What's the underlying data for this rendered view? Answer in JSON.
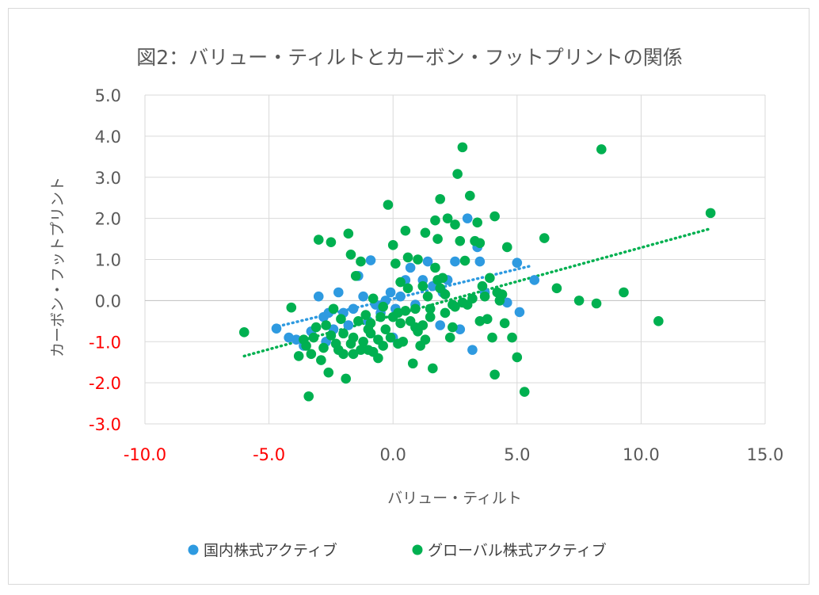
{
  "chart_data": {
    "type": "scatter",
    "title": "図2：バリュー・ティルトとカーボン・フットプリントの関係",
    "xlabel": "バリュー・ティルト",
    "ylabel": "カーボン・フットプリント",
    "xlim": [
      -10,
      15
    ],
    "ylim": [
      -3,
      5
    ],
    "x_ticks": [
      "-10.0",
      "-5.0",
      "0.0",
      "5.0",
      "10.0",
      "15.0"
    ],
    "y_ticks": [
      "5.0",
      "4.0",
      "3.0",
      "2.0",
      "1.0",
      "0.0",
      "-1.0",
      "-2.0",
      "-3.0"
    ],
    "negative_tick_color": "#ff0000",
    "tick_color": "#595959",
    "grid": true,
    "legend_position": "bottom",
    "series": [
      {
        "name": "国内株式アクティブ",
        "color": "#2e9ae0",
        "trendline": {
          "x0": -4.8,
          "y0": -0.65,
          "x1": 5.6,
          "y1": 0.85
        },
        "points": [
          [
            -4.7,
            -0.68
          ],
          [
            -4.2,
            -0.9
          ],
          [
            -3.9,
            -0.95
          ],
          [
            -3.6,
            -1.1
          ],
          [
            -3.3,
            -0.75
          ],
          [
            -3.0,
            0.1
          ],
          [
            -2.8,
            -0.4
          ],
          [
            -2.6,
            -0.3
          ],
          [
            -2.4,
            -0.7
          ],
          [
            -2.2,
            0.2
          ],
          [
            -2.0,
            -0.3
          ],
          [
            -1.8,
            -0.6
          ],
          [
            -1.6,
            -0.2
          ],
          [
            -1.4,
            0.6
          ],
          [
            -1.2,
            0.1
          ],
          [
            -1.0,
            -0.5
          ],
          [
            -0.9,
            0.98
          ],
          [
            -0.7,
            -0.1
          ],
          [
            -0.5,
            -0.3
          ],
          [
            -0.3,
            0.0
          ],
          [
            -0.1,
            0.2
          ],
          [
            0.1,
            -0.2
          ],
          [
            0.3,
            0.1
          ],
          [
            0.5,
            0.5
          ],
          [
            0.7,
            0.8
          ],
          [
            0.9,
            -0.1
          ],
          [
            1.2,
            0.5
          ],
          [
            1.4,
            0.95
          ],
          [
            1.6,
            0.35
          ],
          [
            1.9,
            -0.6
          ],
          [
            2.0,
            0.2
          ],
          [
            2.2,
            0.5
          ],
          [
            2.5,
            0.95
          ],
          [
            2.7,
            -0.7
          ],
          [
            3.0,
            2.0
          ],
          [
            3.2,
            -1.2
          ],
          [
            3.4,
            1.3
          ],
          [
            3.5,
            0.95
          ],
          [
            3.7,
            0.2
          ],
          [
            4.6,
            -0.05
          ],
          [
            5.0,
            0.92
          ],
          [
            5.1,
            -0.28
          ],
          [
            5.7,
            0.5
          ],
          [
            -2.7,
            -1.0
          ],
          [
            0.0,
            -0.9
          ]
        ]
      },
      {
        "name": "グローバル株式アクティブ",
        "color": "#00b050",
        "trendline": {
          "x0": -6.0,
          "y0": -1.35,
          "x1": 12.8,
          "y1": 1.75
        },
        "points": [
          [
            -6.0,
            -0.77
          ],
          [
            -4.1,
            -0.17
          ],
          [
            -3.5,
            -1.1
          ],
          [
            -3.4,
            -2.33
          ],
          [
            -3.2,
            -0.9
          ],
          [
            -3.0,
            1.48
          ],
          [
            -2.9,
            -1.45
          ],
          [
            -2.7,
            -0.6
          ],
          [
            -2.6,
            -1.75
          ],
          [
            -2.5,
            1.42
          ],
          [
            -2.4,
            -0.2
          ],
          [
            -2.2,
            -1.2
          ],
          [
            -2.0,
            -0.8
          ],
          [
            -1.9,
            -1.9
          ],
          [
            -1.8,
            1.63
          ],
          [
            -1.7,
            1.12
          ],
          [
            -1.6,
            -1.3
          ],
          [
            -1.5,
            0.6
          ],
          [
            -1.4,
            -0.5
          ],
          [
            -1.3,
            0.95
          ],
          [
            -1.2,
            -1.0
          ],
          [
            -1.0,
            -1.2
          ],
          [
            -0.9,
            -0.8
          ],
          [
            -0.8,
            0.05
          ],
          [
            -0.6,
            -1.4
          ],
          [
            -0.5,
            -0.4
          ],
          [
            -0.4,
            -1.1
          ],
          [
            -0.2,
            2.33
          ],
          [
            -0.1,
            -0.9
          ],
          [
            0.0,
            1.35
          ],
          [
            0.1,
            0.9
          ],
          [
            0.2,
            -0.3
          ],
          [
            0.3,
            0.45
          ],
          [
            0.5,
            1.7
          ],
          [
            0.6,
            1.05
          ],
          [
            0.7,
            -0.5
          ],
          [
            0.8,
            -1.53
          ],
          [
            0.9,
            -0.2
          ],
          [
            1.0,
            1.0
          ],
          [
            1.1,
            -1.1
          ],
          [
            1.2,
            -0.6
          ],
          [
            1.3,
            1.65
          ],
          [
            1.4,
            0.1
          ],
          [
            1.5,
            -0.4
          ],
          [
            1.6,
            -1.65
          ],
          [
            1.7,
            1.95
          ],
          [
            1.8,
            1.5
          ],
          [
            1.9,
            2.47
          ],
          [
            2.0,
            0.55
          ],
          [
            2.1,
            -0.3
          ],
          [
            2.2,
            2.0
          ],
          [
            2.3,
            -0.9
          ],
          [
            2.4,
            -0.1
          ],
          [
            2.5,
            1.85
          ],
          [
            2.6,
            3.08
          ],
          [
            2.7,
            1.45
          ],
          [
            2.8,
            3.73
          ],
          [
            2.9,
            0.97
          ],
          [
            3.0,
            -0.1
          ],
          [
            3.1,
            2.55
          ],
          [
            3.3,
            1.45
          ],
          [
            3.4,
            1.9
          ],
          [
            3.5,
            -0.5
          ],
          [
            3.6,
            0.35
          ],
          [
            3.7,
            0.1
          ],
          [
            3.8,
            -0.45
          ],
          [
            3.9,
            0.55
          ],
          [
            4.0,
            -0.9
          ],
          [
            4.1,
            2.05
          ],
          [
            4.1,
            -1.8
          ],
          [
            4.2,
            0.2
          ],
          [
            4.3,
            0.0
          ],
          [
            4.5,
            -0.55
          ],
          [
            4.6,
            1.3
          ],
          [
            4.8,
            -0.9
          ],
          [
            5.0,
            -1.38
          ],
          [
            5.3,
            -2.22
          ],
          [
            6.1,
            1.52
          ],
          [
            6.6,
            0.3
          ],
          [
            7.5,
            0.0
          ],
          [
            8.2,
            -0.07
          ],
          [
            8.4,
            3.68
          ],
          [
            9.3,
            0.2
          ],
          [
            10.7,
            -0.5
          ],
          [
            12.8,
            2.13
          ],
          [
            -3.8,
            -1.35
          ],
          [
            -3.1,
            -0.65
          ],
          [
            -2.3,
            -1.05
          ],
          [
            -1.1,
            -0.35
          ],
          [
            -0.3,
            -0.7
          ],
          [
            0.4,
            -1.0
          ],
          [
            1.2,
            0.35
          ],
          [
            1.9,
            0.3
          ],
          [
            2.4,
            -0.65
          ],
          [
            3.2,
            0.05
          ],
          [
            -3.3,
            -1.3
          ],
          [
            -2.8,
            -1.15
          ],
          [
            -2.1,
            -0.45
          ],
          [
            -1.6,
            -0.9
          ],
          [
            -0.8,
            -1.25
          ],
          [
            0.2,
            -1.05
          ],
          [
            0.9,
            -0.65
          ],
          [
            1.5,
            -0.2
          ],
          [
            2.1,
            0.15
          ],
          [
            2.8,
            -0.05
          ],
          [
            -3.6,
            -0.95
          ],
          [
            -2.5,
            -0.85
          ],
          [
            -1.7,
            -1.05
          ],
          [
            -0.9,
            -0.55
          ],
          [
            0.6,
            0.3
          ],
          [
            1.3,
            -0.95
          ],
          [
            1.8,
            0.5
          ],
          [
            3.5,
            1.4
          ],
          [
            4.4,
            0.15
          ],
          [
            -1.3,
            -1.2
          ],
          [
            -0.6,
            -0.95
          ],
          [
            0.0,
            -0.4
          ],
          [
            0.5,
            -0.25
          ],
          [
            1.0,
            -0.75
          ],
          [
            1.7,
            0.8
          ],
          [
            2.5,
            -0.15
          ],
          [
            -2.0,
            -1.3
          ],
          [
            -1.0,
            -0.7
          ],
          [
            -0.4,
            -0.15
          ],
          [
            0.3,
            -0.55
          ]
        ]
      }
    ]
  }
}
